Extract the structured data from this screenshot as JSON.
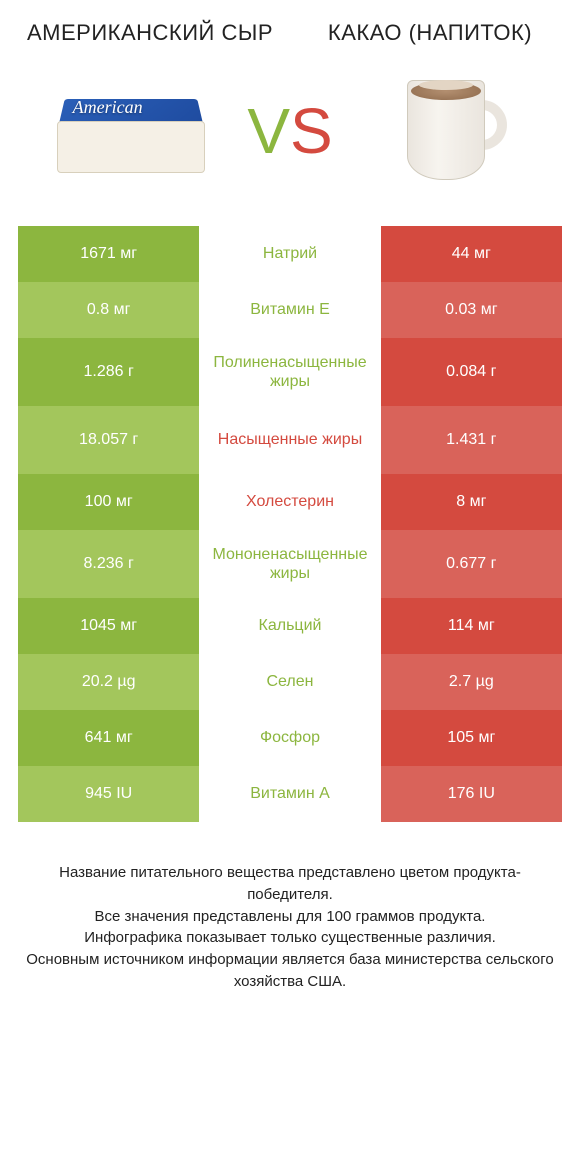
{
  "colors": {
    "left_winner_bg": "#8cb63f",
    "left_even_bg": "#a3c65c",
    "right_bg": "#d44a3f",
    "right_even_bg": "#d9635a",
    "middle_bg": "#ffffff",
    "label_winner_color": "#8cb63f",
    "label_loser_color": "#d44a3f",
    "vs_v_color": "#8cb63f",
    "vs_s_color": "#d44a3f",
    "title_color": "#222222"
  },
  "header": {
    "left_title": "АМЕРИКАНСКИЙ СЫР",
    "right_title": "КАКАО (НАПИТОК)",
    "vs_v": "V",
    "vs_s": "S"
  },
  "rows": [
    {
      "left": "1671 мг",
      "label": "Натрий",
      "right": "44 мг",
      "winner": "left",
      "tall": false
    },
    {
      "left": "0.8 мг",
      "label": "Витамин E",
      "right": "0.03 мг",
      "winner": "left",
      "tall": false
    },
    {
      "left": "1.286 г",
      "label": "Полиненасыщенные жиры",
      "right": "0.084 г",
      "winner": "left",
      "tall": true
    },
    {
      "left": "18.057 г",
      "label": "Насыщенные жиры",
      "right": "1.431 г",
      "winner": "right",
      "tall": true
    },
    {
      "left": "100 мг",
      "label": "Холестерин",
      "right": "8 мг",
      "winner": "right",
      "tall": false
    },
    {
      "left": "8.236 г",
      "label": "Мононенасыщенные жиры",
      "right": "0.677 г",
      "winner": "left",
      "tall": true
    },
    {
      "left": "1045 мг",
      "label": "Кальций",
      "right": "114 мг",
      "winner": "left",
      "tall": false
    },
    {
      "left": "20.2 µg",
      "label": "Селен",
      "right": "2.7 µg",
      "winner": "left",
      "tall": false
    },
    {
      "left": "641 мг",
      "label": "Фосфор",
      "right": "105 мг",
      "winner": "left",
      "tall": false
    },
    {
      "left": "945 IU",
      "label": "Витамин A",
      "right": "176 IU",
      "winner": "left",
      "tall": false
    }
  ],
  "footer": {
    "line1": "Название питательного вещества представлено цветом продукта-победителя.",
    "line2": "Все значения представлены для 100 граммов продукта.",
    "line3": "Инфографика показывает только существенные различия.",
    "line4": "Основным источником информации является база министерства сельского хозяйства США."
  }
}
